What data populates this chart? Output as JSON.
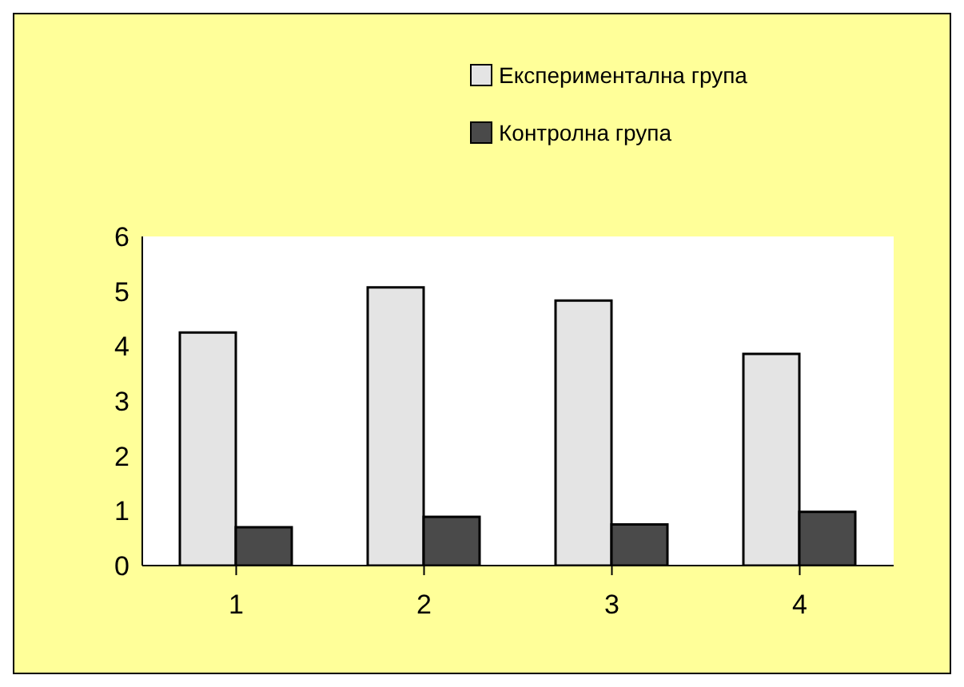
{
  "chart_data": {
    "type": "bar",
    "categories": [
      "1",
      "2",
      "3",
      "4"
    ],
    "series": [
      {
        "name": "Експериментална група",
        "color": "#e4e4e4",
        "values": [
          4.25,
          5.07,
          4.83,
          3.86
        ]
      },
      {
        "name": "Контролна група",
        "color": "#4a4a4a",
        "values": [
          0.7,
          0.89,
          0.75,
          0.98
        ]
      }
    ],
    "ylim": [
      0,
      6
    ],
    "yticks": [
      0,
      1,
      2,
      3,
      4,
      5,
      6
    ],
    "grid": false,
    "legend": "top right"
  }
}
